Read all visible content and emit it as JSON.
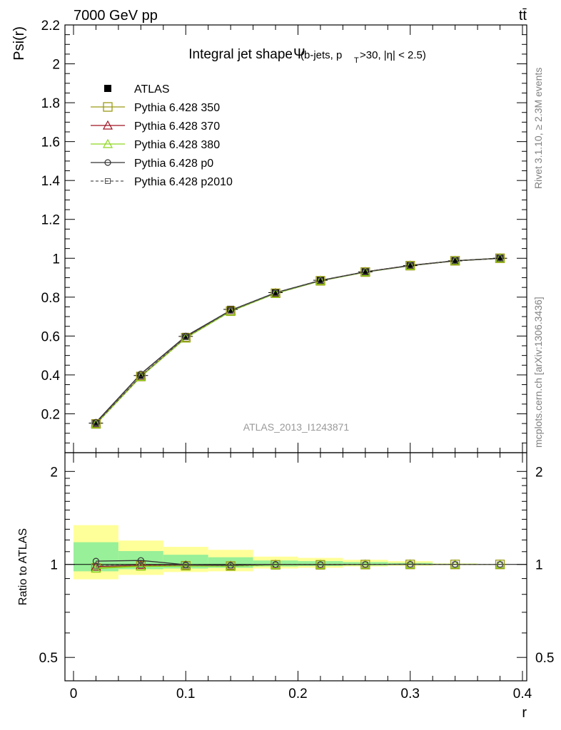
{
  "header": {
    "energy_label": "7000 GeV pp",
    "process_label": "tt̄"
  },
  "side_text": {
    "rivet": "Rivet 3.1.10, ≥ 2.3M events",
    "mcplots": "mcplots.cern.ch [arXiv:1306.3436]"
  },
  "watermark": "ATLAS_2013_I1243871",
  "chart_data": [
    {
      "type": "line",
      "title_main": "Integral jet shape",
      "title_symbol": "Ψ",
      "title_sub_prefix": "(b-jets, p",
      "title_sub_subscript": "T",
      "title_sub_suffix": ">30, |η| < 2.5)",
      "ylabel": "Psi(r)",
      "xlim": [
        0,
        0.4
      ],
      "ylim": [
        0,
        2.2
      ],
      "yticks": [
        0.2,
        0.4,
        0.6,
        0.8,
        1,
        1.2,
        1.4,
        1.6,
        1.8,
        2,
        2.2
      ],
      "ytick_labels": [
        "0.2",
        "0.4",
        "0.6",
        "0.8",
        "1",
        "1.2",
        "1.4",
        "1.6",
        "1.8",
        "2",
        "2.2"
      ],
      "x": [
        0.02,
        0.06,
        0.1,
        0.14,
        0.18,
        0.22,
        0.26,
        0.3,
        0.34,
        0.38
      ],
      "legend_position": "top-left",
      "series": [
        {
          "name": "ATLAS",
          "style": "data",
          "color": "#000000",
          "marker": "filled-square",
          "values": [
            0.152,
            0.397,
            0.598,
            0.737,
            0.823,
            0.887,
            0.93,
            0.962,
            0.987,
            1.0
          ]
        },
        {
          "name": "Pythia 6.428 350",
          "style": "mc",
          "color": "#9a9a14",
          "marker": "open-square",
          "dash": "",
          "values": [
            0.148,
            0.392,
            0.591,
            0.728,
            0.82,
            0.884,
            0.929,
            0.962,
            0.987,
            1.0
          ]
        },
        {
          "name": "Pythia 6.428 370",
          "style": "mc",
          "color": "#a01020",
          "marker": "open-triangle",
          "dash": "",
          "values": [
            0.149,
            0.393,
            0.592,
            0.729,
            0.821,
            0.885,
            0.93,
            0.963,
            0.987,
            1.0
          ]
        },
        {
          "name": "Pythia 6.428 380",
          "style": "mc",
          "color": "#8cd61c",
          "marker": "open-triangle",
          "dash": "",
          "values": [
            0.147,
            0.391,
            0.59,
            0.727,
            0.819,
            0.884,
            0.929,
            0.962,
            0.987,
            1.0
          ]
        },
        {
          "name": "Pythia 6.428 p0",
          "style": "mc",
          "color": "#333333",
          "marker": "open-circle",
          "dash": "",
          "values": [
            0.156,
            0.405,
            0.599,
            0.732,
            0.823,
            0.886,
            0.93,
            0.963,
            0.987,
            1.0
          ]
        },
        {
          "name": "Pythia 6.428 p2010",
          "style": "mc",
          "color": "#555555",
          "marker": "open-square-small",
          "dash": "4,3",
          "values": [
            0.15,
            0.395,
            0.594,
            0.73,
            0.821,
            0.885,
            0.93,
            0.962,
            0.987,
            1.0
          ]
        }
      ]
    },
    {
      "type": "line",
      "ylabel": "Ratio to ATLAS",
      "xlabel": "r",
      "xlim": [
        0,
        0.4
      ],
      "ylim": [
        0.42,
        2.3
      ],
      "yscale": "log",
      "yticks": [
        0.5,
        1,
        2
      ],
      "ytick_labels": [
        "0.5",
        "1",
        "2"
      ],
      "xticks": [
        0,
        0.1,
        0.2,
        0.3,
        0.4
      ],
      "xtick_labels": [
        "0",
        "0.1",
        "0.2",
        "0.3",
        "0.4"
      ],
      "x": [
        0.02,
        0.06,
        0.1,
        0.14,
        0.18,
        0.22,
        0.26,
        0.3,
        0.34,
        0.38
      ],
      "bins": [
        [
          0.0,
          0.04
        ],
        [
          0.04,
          0.08
        ],
        [
          0.08,
          0.12
        ],
        [
          0.12,
          0.16
        ],
        [
          0.16,
          0.2
        ],
        [
          0.2,
          0.24
        ],
        [
          0.24,
          0.28
        ],
        [
          0.28,
          0.32
        ],
        [
          0.32,
          0.36
        ],
        [
          0.36,
          0.4
        ]
      ],
      "band_outer": {
        "color": "#ffff99",
        "low": [
          0.895,
          0.925,
          0.945,
          0.95,
          0.97,
          0.975,
          0.985,
          0.99,
          0.995,
          1.0
        ],
        "high": [
          1.34,
          1.195,
          1.14,
          1.115,
          1.06,
          1.05,
          1.035,
          1.025,
          1.008,
          1.0
        ]
      },
      "band_inner": {
        "color": "#98f098",
        "low": [
          0.95,
          0.965,
          0.97,
          0.975,
          0.985,
          0.988,
          0.992,
          0.995,
          0.998,
          1.0
        ],
        "high": [
          1.18,
          1.105,
          1.075,
          1.055,
          1.03,
          1.025,
          1.018,
          1.012,
          1.005,
          1.0
        ]
      },
      "series": [
        {
          "name": "Pythia 6.428 350",
          "color": "#9a9a14",
          "marker": "open-square",
          "dash": "",
          "values": [
            0.975,
            0.99,
            0.99,
            0.988,
            0.997,
            0.997,
            0.999,
            1.0,
            1.0,
            1.0
          ]
        },
        {
          "name": "Pythia 6.428 370",
          "color": "#a01020",
          "marker": "open-triangle",
          "dash": "",
          "values": [
            0.985,
            0.995,
            0.992,
            0.99,
            0.998,
            0.998,
            1.0,
            1.001,
            1.0,
            1.0
          ]
        },
        {
          "name": "Pythia 6.428 380",
          "color": "#8cd61c",
          "marker": "open-triangle",
          "dash": "",
          "values": [
            0.97,
            0.985,
            0.988,
            0.987,
            0.996,
            0.997,
            0.999,
            1.0,
            1.0,
            1.0
          ]
        },
        {
          "name": "Pythia 6.428 p0",
          "color": "#333333",
          "marker": "open-circle",
          "dash": "",
          "values": [
            1.025,
            1.03,
            0.998,
            0.994,
            1.0,
            0.999,
            1.0,
            1.001,
            1.0,
            1.0
          ]
        },
        {
          "name": "Pythia 6.428 p2010",
          "color": "#555555",
          "marker": "open-square-small",
          "dash": "4,3",
          "values": [
            0.99,
            0.995,
            0.994,
            0.991,
            0.998,
            0.998,
            1.0,
            1.0,
            1.0,
            1.0
          ]
        }
      ]
    }
  ]
}
